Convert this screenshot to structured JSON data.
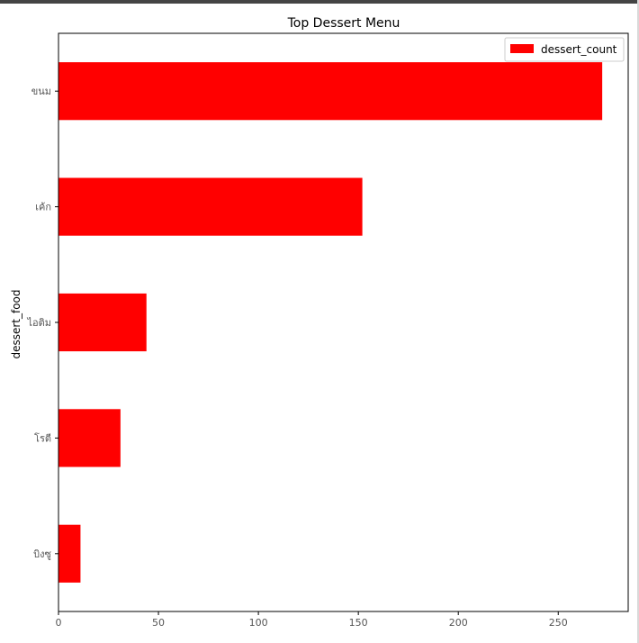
{
  "chart_data": {
    "type": "bar",
    "orientation": "horizontal",
    "title": "Top Dessert Menu",
    "xlabel": "",
    "ylabel": "dessert_food",
    "categories": [
      "ขนม",
      "เค้ก",
      "ไอติม",
      "โรตี",
      "บิงซู"
    ],
    "series": [
      {
        "name": "dessert_count",
        "values": [
          272,
          152,
          44,
          31,
          11
        ],
        "color": "#ff0000"
      }
    ],
    "xlim": [
      0,
      285
    ],
    "xticks": [
      0,
      50,
      100,
      150,
      200,
      250
    ],
    "grid": false,
    "legend": "top-right"
  }
}
